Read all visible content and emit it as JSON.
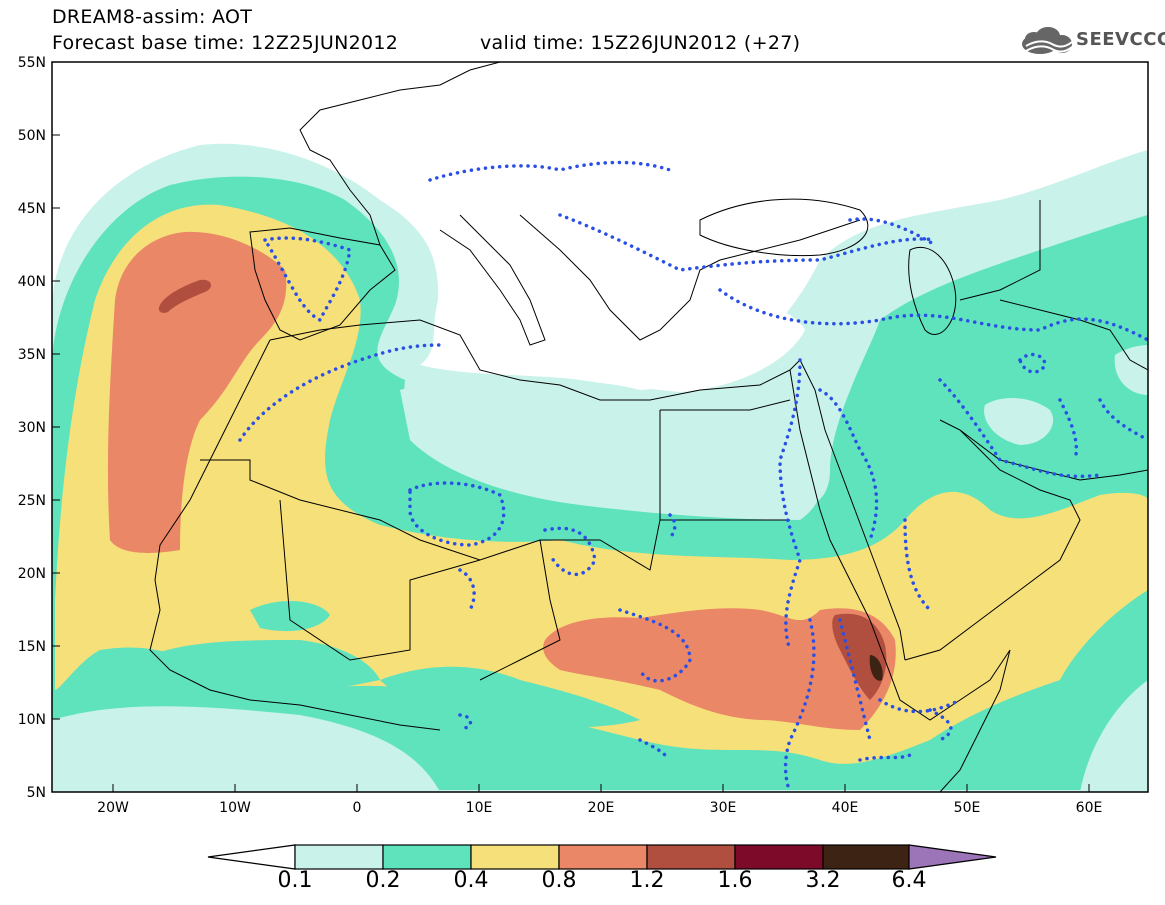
{
  "header": {
    "title": "DREAM8-assim: AOT",
    "base_time": "Forecast base time: 12Z25JUN2012",
    "valid_time": "valid time: 15Z26JUN2012 (+27)",
    "logo_text": "SEEVCCC"
  },
  "map": {
    "lon_range": [
      -25,
      65
    ],
    "lat_range": [
      5,
      55
    ],
    "lat_labels": [
      "55N",
      "50N",
      "45N",
      "40N",
      "35N",
      "30N",
      "25N",
      "20N",
      "15N",
      "10N",
      "5N"
    ],
    "lon_labels": [
      "20W",
      "10W",
      "0",
      "10E",
      "20E",
      "30E",
      "40E",
      "50E",
      "60E"
    ]
  },
  "colorbar": {
    "levels": [
      "0.1",
      "0.2",
      "0.4",
      "0.8",
      "1.2",
      "1.6",
      "3.2",
      "6.4"
    ],
    "colors": [
      "#ffffff",
      "#c9f2ea",
      "#5fe3bc",
      "#f6e07a",
      "#ea8766",
      "#b04e40",
      "#7e0a2a",
      "#3d2314",
      "#9c74b8"
    ]
  }
}
